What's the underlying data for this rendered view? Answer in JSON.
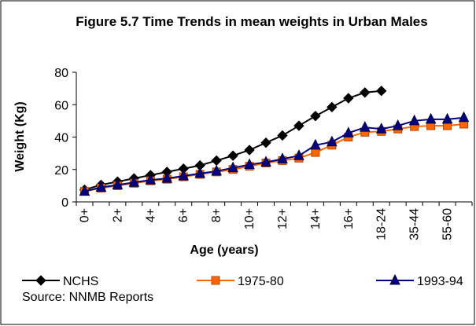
{
  "chart_data": {
    "type": "line",
    "title": "Figure 5.7 Time Trends in mean weights in Urban Males",
    "x_label": "Age (years)",
    "y_label": "Weight (Kg)",
    "source": "Source: NNMB Reports",
    "categories": [
      "0+",
      null,
      "2+",
      null,
      "4+",
      null,
      "6+",
      null,
      "8+",
      null,
      "10+",
      null,
      "12+",
      null,
      "14+",
      null,
      "16+",
      null,
      "18-24",
      null,
      "35-44",
      null,
      "55-60",
      null
    ],
    "series": [
      {
        "name": "NCHS",
        "color": "#000000",
        "marker": "diamond",
        "values": [
          7.5,
          10.5,
          12.5,
          14.5,
          16.5,
          18.5,
          20.5,
          22.5,
          25.5,
          28.5,
          32,
          36.5,
          41,
          47,
          53,
          58.5,
          64,
          67.5,
          68.5,
          null,
          null,
          null,
          null,
          null
        ]
      },
      {
        "name": "1975-80",
        "color": "#ff6600",
        "marker": "square",
        "values": [
          6.5,
          8.5,
          10,
          11.5,
          13,
          14,
          15.5,
          17,
          18.5,
          20,
          22,
          24,
          25.5,
          27,
          30.5,
          35,
          40,
          43,
          43.5,
          45,
          46.5,
          47,
          47,
          48
        ]
      },
      {
        "name": "1993-94",
        "color": "#000080",
        "marker": "triangle",
        "values": [
          6.5,
          9,
          10.5,
          12,
          13.5,
          14.5,
          16,
          17.5,
          19,
          21,
          23,
          24.5,
          26.5,
          28.5,
          35,
          37,
          42.5,
          46,
          45,
          47,
          50,
          51,
          51,
          52
        ]
      }
    ],
    "ylim": [
      0,
      80
    ],
    "yticks": [
      0,
      20,
      40,
      60,
      80
    ],
    "grid": false,
    "legend": "bottom"
  }
}
